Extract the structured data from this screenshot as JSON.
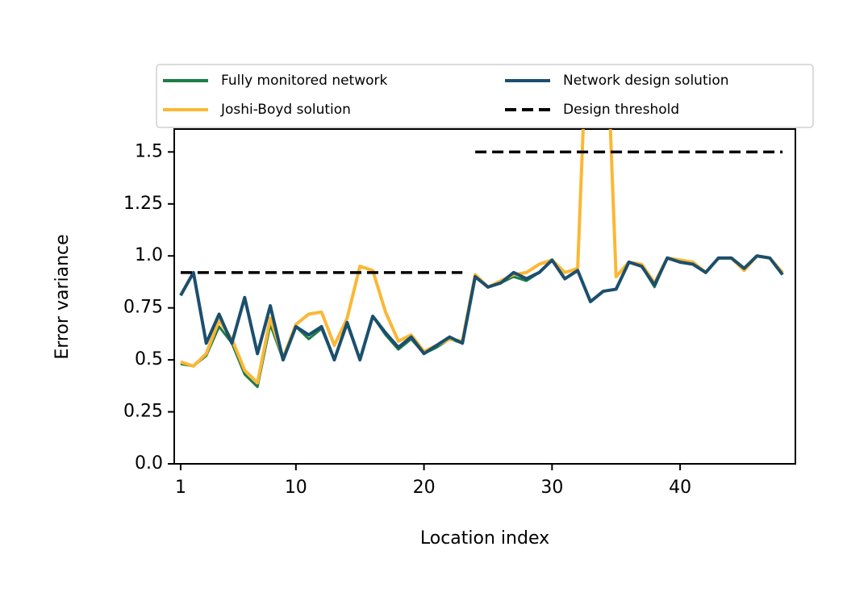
{
  "chart_data": {
    "type": "line",
    "xlabel": "Location index",
    "ylabel": "Error variance",
    "x": [
      1,
      2,
      3,
      4,
      5,
      6,
      7,
      8,
      9,
      10,
      11,
      12,
      13,
      14,
      15,
      16,
      17,
      18,
      19,
      20,
      21,
      22,
      23,
      24,
      25,
      26,
      27,
      28,
      29,
      30,
      31,
      32,
      33,
      34,
      35,
      36,
      37,
      38,
      39,
      40,
      41,
      42,
      43,
      44,
      45,
      46,
      47,
      48
    ],
    "xlim": [
      0.5,
      49
    ],
    "xticks": [
      1,
      10,
      20,
      30,
      40
    ],
    "ylim": [
      0,
      1.61
    ],
    "yticks": [
      {
        "value": 0,
        "label": "0.0"
      },
      0.25,
      0.5,
      0.75,
      {
        "value": 1,
        "label": "1.0"
      },
      1.25,
      1.5
    ],
    "legend": "top-outside",
    "series": [
      {
        "name": "Fully monitored network",
        "color": "#1e7d45",
        "style": "solid",
        "values": [
          0.48,
          0.47,
          0.52,
          0.66,
          0.58,
          0.43,
          0.37,
          0.67,
          0.5,
          0.66,
          0.6,
          0.65,
          0.5,
          0.67,
          0.5,
          0.71,
          0.62,
          0.55,
          0.6,
          0.53,
          0.56,
          0.6,
          0.58,
          0.9,
          0.85,
          0.87,
          0.9,
          0.88,
          0.92,
          0.98,
          0.89,
          0.93,
          0.78,
          0.83,
          0.84,
          0.97,
          0.95,
          0.85,
          0.99,
          0.97,
          0.96,
          0.92,
          0.99,
          0.99,
          0.93,
          1.0,
          0.99,
          0.91
        ]
      },
      {
        "name": "Joshi-Boyd solution",
        "color": "#fbb735",
        "style": "solid",
        "values": [
          0.49,
          0.47,
          0.53,
          0.69,
          0.6,
          0.45,
          0.39,
          0.7,
          0.51,
          0.67,
          0.72,
          0.73,
          0.57,
          0.7,
          0.95,
          0.93,
          0.73,
          0.59,
          0.62,
          0.54,
          0.57,
          0.6,
          0.59,
          0.91,
          0.85,
          0.88,
          0.91,
          0.92,
          0.96,
          0.98,
          0.92,
          0.94,
          2.5,
          2.5,
          0.9,
          0.97,
          0.96,
          0.87,
          0.99,
          0.98,
          0.97,
          0.92,
          0.99,
          0.99,
          0.93,
          1.0,
          0.99,
          0.92
        ]
      },
      {
        "name": "Network design solution",
        "color": "#1b4f6e",
        "style": "solid",
        "values": [
          0.81,
          0.92,
          0.58,
          0.72,
          0.58,
          0.8,
          0.53,
          0.76,
          0.5,
          0.66,
          0.62,
          0.66,
          0.5,
          0.68,
          0.5,
          0.71,
          0.63,
          0.56,
          0.61,
          0.53,
          0.57,
          0.61,
          0.58,
          0.9,
          0.85,
          0.87,
          0.92,
          0.89,
          0.92,
          0.98,
          0.89,
          0.93,
          0.78,
          0.83,
          0.84,
          0.97,
          0.95,
          0.86,
          0.99,
          0.97,
          0.96,
          0.92,
          0.99,
          0.99,
          0.94,
          1.0,
          0.99,
          0.91
        ]
      },
      {
        "name": "Design threshold",
        "color": "#000000",
        "style": "dashed",
        "values": [
          0.92,
          0.92,
          0.92,
          0.92,
          0.92,
          0.92,
          0.92,
          0.92,
          0.92,
          0.92,
          0.92,
          0.92,
          0.92,
          0.92,
          0.92,
          0.92,
          0.92,
          0.92,
          0.92,
          0.92,
          0.92,
          0.92,
          0.92,
          1.5,
          1.5,
          1.5,
          1.5,
          1.5,
          1.5,
          1.5,
          1.5,
          1.5,
          1.5,
          1.5,
          1.5,
          1.5,
          1.5,
          1.5,
          1.5,
          1.5,
          1.5,
          1.5,
          1.5,
          1.5,
          1.5,
          1.5,
          1.5,
          1.5
        ]
      }
    ]
  }
}
